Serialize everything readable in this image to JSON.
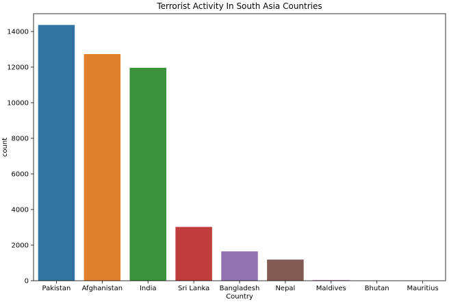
{
  "chart_data": {
    "type": "bar",
    "title": "Terrorist Activity In South Asia Countries",
    "xlabel": "Country",
    "ylabel": "count",
    "categories": [
      "Pakistan",
      "Afghanistan",
      "India",
      "Sri Lanka",
      "Bangladesh",
      "Nepal",
      "Maldives",
      "Bhutan",
      "Mauritius"
    ],
    "values": [
      14368,
      12731,
      11960,
      3022,
      1648,
      1186,
      40,
      7,
      2
    ],
    "colors": [
      "#3274a1",
      "#e1812c",
      "#3a923a",
      "#c03d3e",
      "#9372b2",
      "#845b53",
      "#d684bd",
      "#7f7f7f",
      "#a9aa35"
    ],
    "ylim": [
      0,
      15000
    ],
    "yticks": [
      0,
      2000,
      4000,
      6000,
      8000,
      10000,
      12000,
      14000
    ],
    "grid": false,
    "legend": "none"
  }
}
